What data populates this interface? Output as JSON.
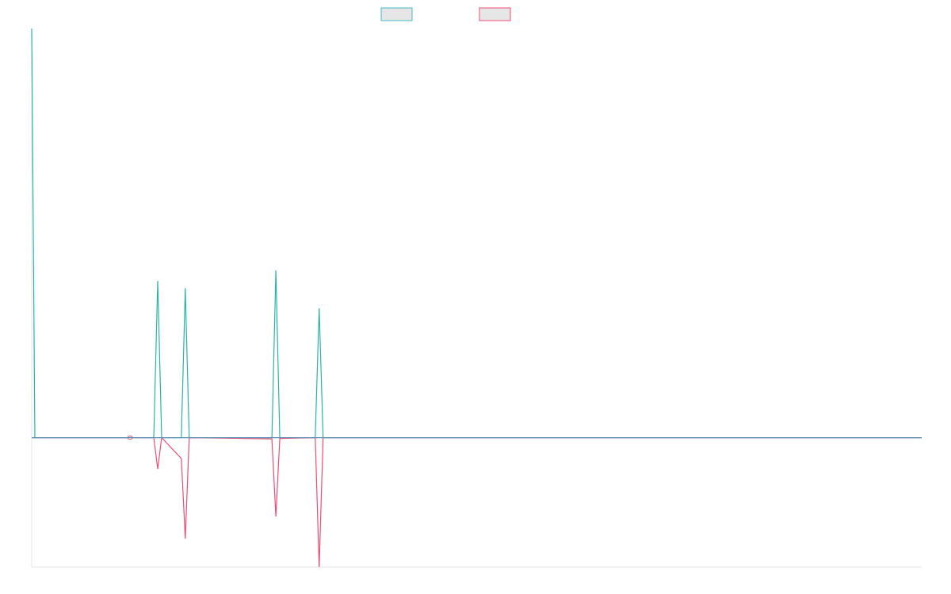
{
  "chart_data": {
    "type": "line",
    "legend": {
      "position": "top-center",
      "show_labels": false
    },
    "grid": false,
    "ylim": [
      -3.1,
      9.8
    ],
    "xlim": [
      0,
      226
    ],
    "x": [
      0,
      0.8,
      1,
      25,
      31,
      32,
      33,
      38,
      39,
      40,
      61,
      62,
      63,
      72,
      73,
      74,
      226
    ],
    "series": [
      {
        "color": "#2bb3a8",
        "border_color": "#46b8c2",
        "values": [
          9.8,
          0,
          0,
          0,
          0,
          3.75,
          0,
          0,
          3.58,
          0,
          0,
          4.01,
          0,
          0,
          3.1,
          0,
          0
        ]
      },
      {
        "color": "#ef4d73",
        "border_color": "#ef4d73",
        "values": [
          0,
          0,
          0,
          0,
          0,
          -0.75,
          0,
          -0.5,
          -2.42,
          0,
          -0.03,
          -1.89,
          -0.02,
          0,
          -3.1,
          0,
          0
        ],
        "markers": [
          25
        ]
      }
    ]
  }
}
